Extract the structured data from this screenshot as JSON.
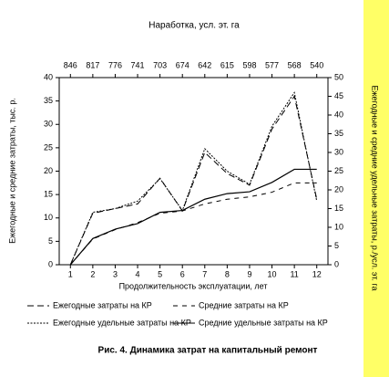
{
  "chart_data": {
    "type": "line",
    "title": "Наработка, усл. эт. га",
    "x2_categories": [
      "846",
      "817",
      "776",
      "741",
      "703",
      "674",
      "642",
      "615",
      "598",
      "577",
      "568",
      "540"
    ],
    "x_label": "Продолжительность эксплуатации, лет",
    "y_label": "Ежегодные и средние затраты, тыс. р.",
    "y2_label": "Ежегодные и средние удельные затраты, р./усл. эт. га",
    "caption": "Рис. 4. Динамика затрат на капитальный  ремонт",
    "x": [
      1,
      2,
      3,
      4,
      5,
      6,
      7,
      8,
      9,
      10,
      11,
      12
    ],
    "xlim": [
      0.5,
      12.5
    ],
    "xticks": [
      1,
      2,
      3,
      4,
      5,
      6,
      7,
      8,
      9,
      10,
      11,
      12
    ],
    "ylim": [
      0,
      40
    ],
    "yticks": [
      0,
      5,
      10,
      15,
      20,
      25,
      30,
      35,
      40
    ],
    "y2lim": [
      0,
      50
    ],
    "y2ticks": [
      0,
      5,
      10,
      15,
      20,
      25,
      30,
      35,
      40,
      45,
      50
    ],
    "series": [
      {
        "name": "Ежегодные затраты на КР",
        "color": "#000000",
        "dash": "7 4",
        "values": [
          0,
          11,
          12,
          13,
          18.5,
          11.5,
          24,
          19.5,
          17,
          29,
          36,
          14
        ]
      },
      {
        "name": "Средние затраты на КР",
        "color": "#000000",
        "dash": "5 5",
        "values": [
          0,
          5.5,
          7.5,
          9,
          11,
          11.5,
          13,
          14,
          14.5,
          15.5,
          17.5,
          17.5
        ]
      },
      {
        "name": "Ежегодные удельные затраты на КР",
        "color": "#000000",
        "dash": "2 1.5",
        "axis": "y2",
        "values": [
          0,
          14,
          15,
          17,
          23,
          14.5,
          31,
          25,
          21.5,
          37,
          46,
          17
        ]
      },
      {
        "name": "Средние удельные затраты на КР",
        "color": "#000000",
        "dash": "",
        "axis": "y2",
        "values": [
          0,
          7,
          9.5,
          11,
          14,
          14.5,
          17.5,
          19,
          19.5,
          22,
          25.5,
          25.5
        ]
      }
    ]
  }
}
